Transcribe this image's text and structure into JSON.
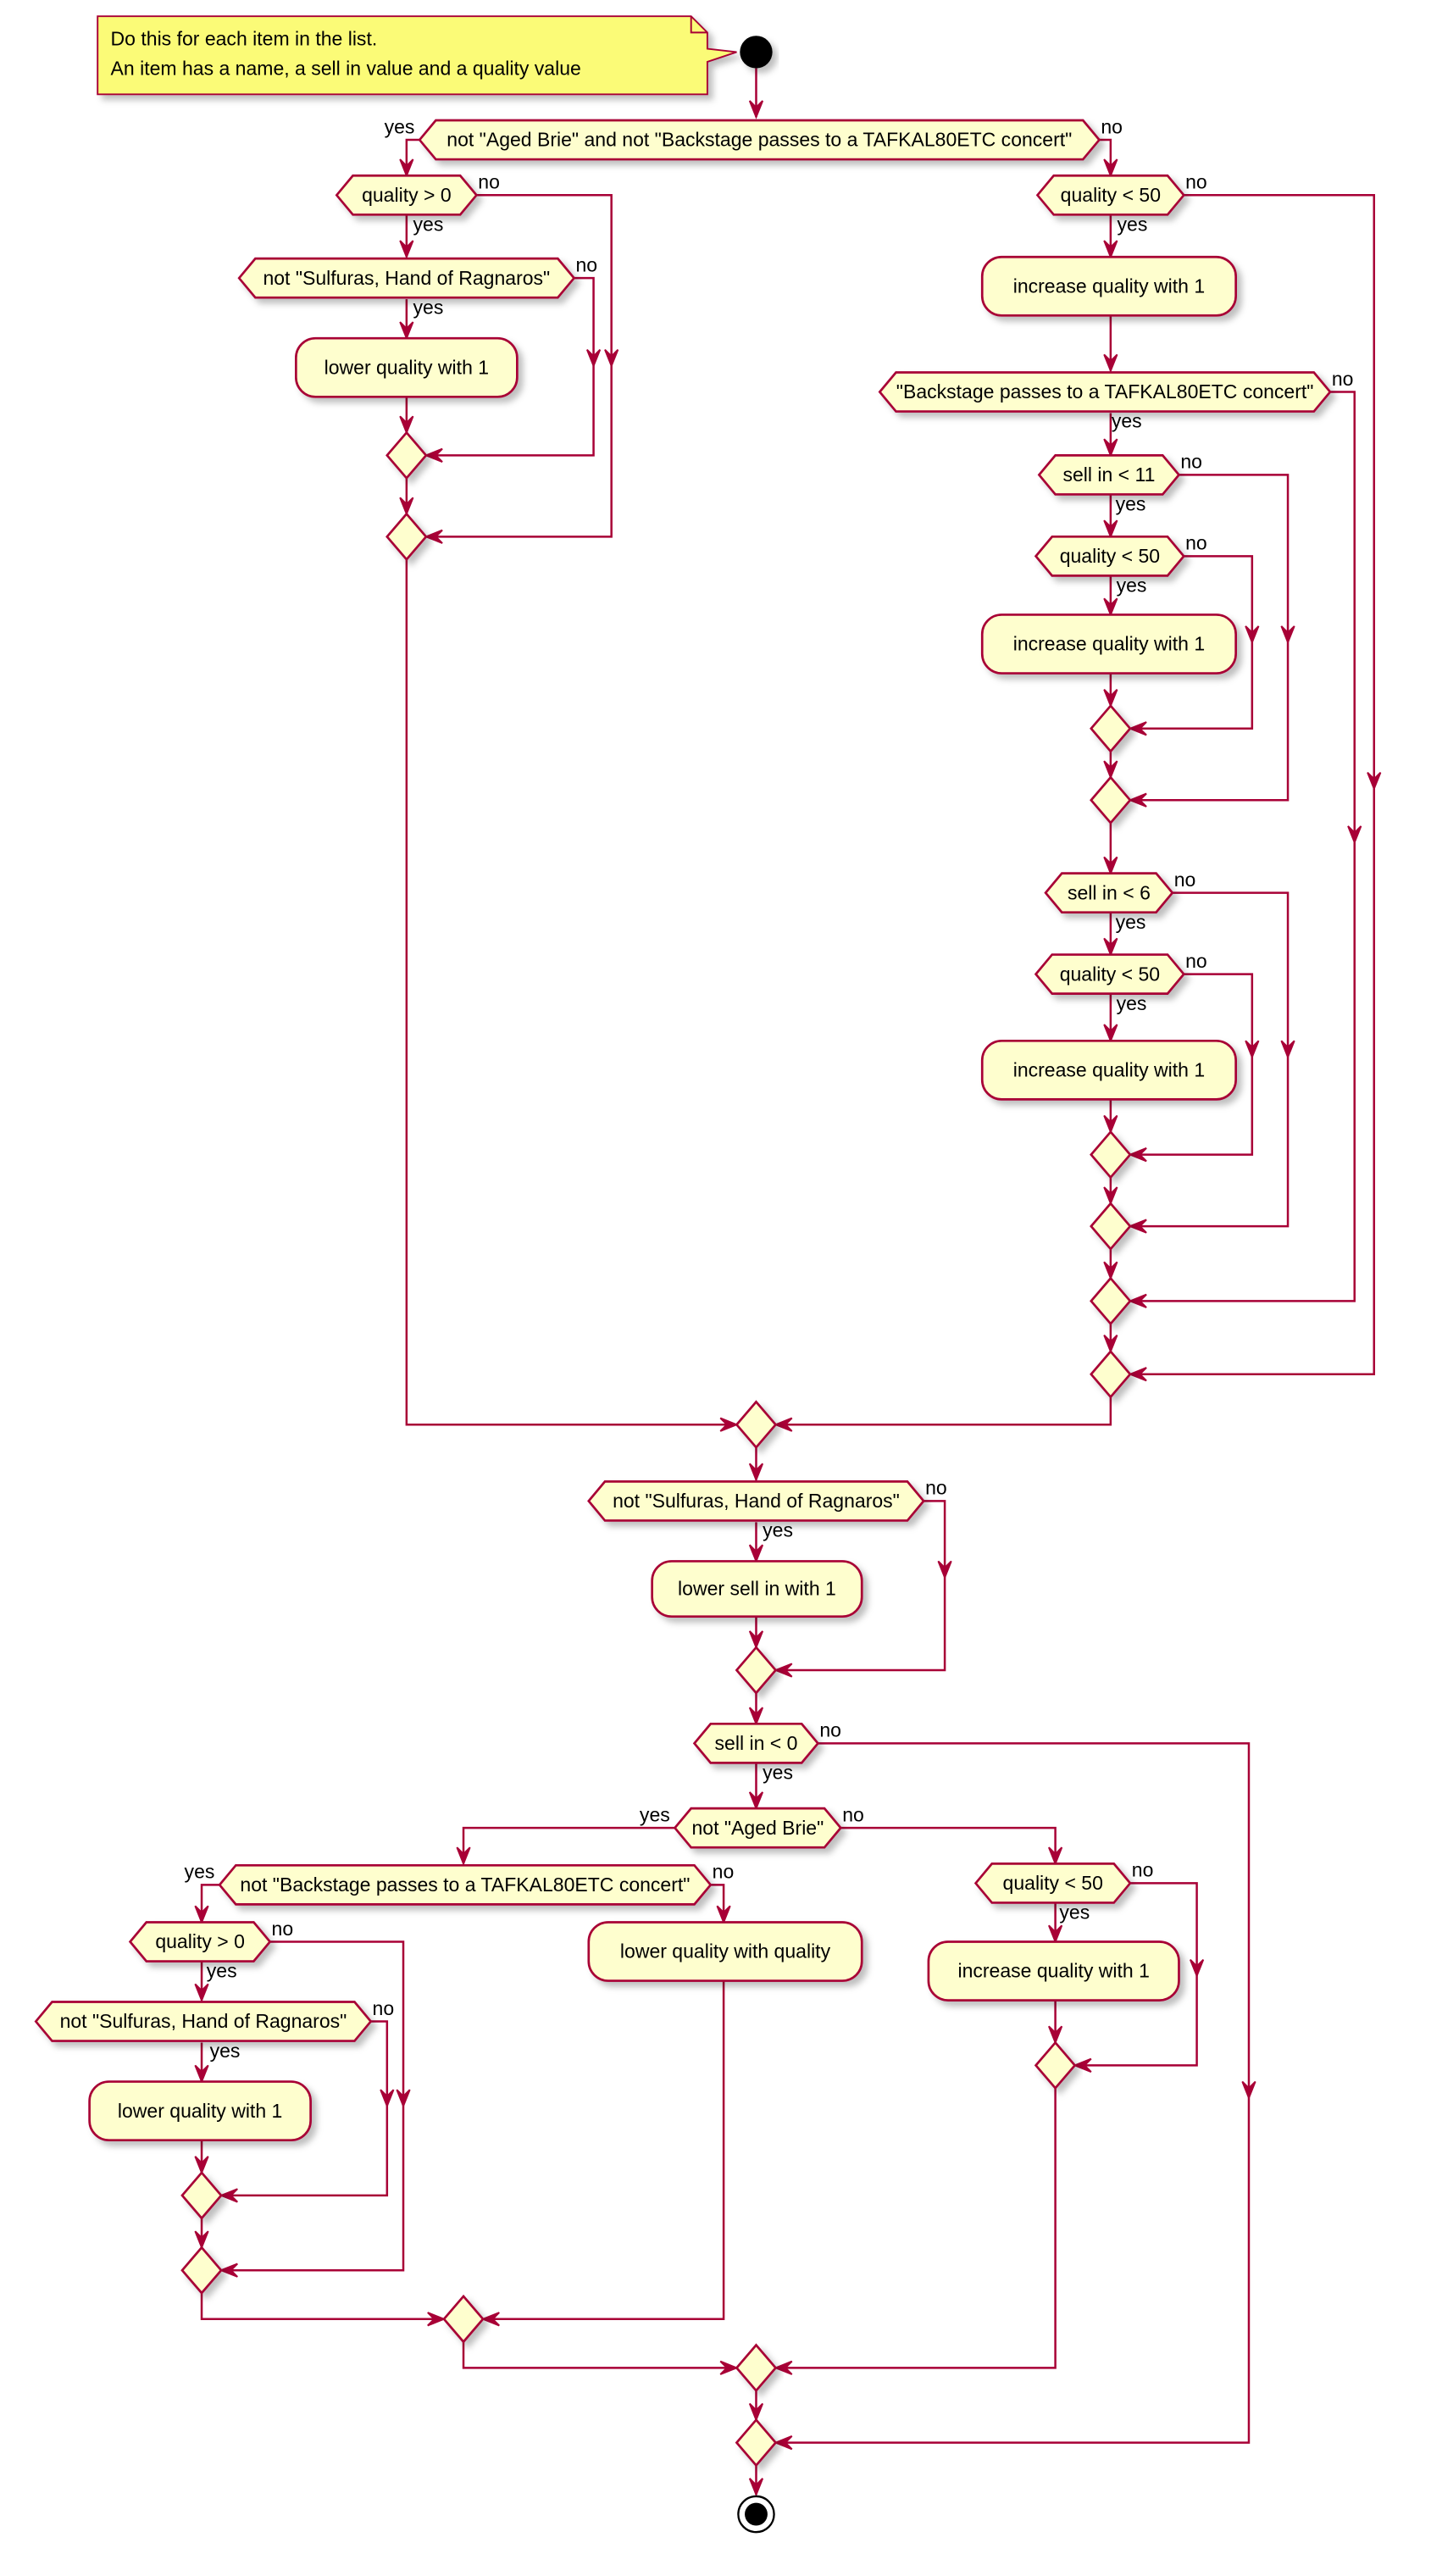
{
  "colors": {
    "fill": "#FEFECE",
    "stroke": "#A80036",
    "note_fill": "#FBFB77",
    "start": "#000000"
  },
  "branch": {
    "yes": "yes",
    "no": "no"
  },
  "note": {
    "lines": [
      "Do this for each item in the list.",
      "An item has a name, a sell in value and a quality value"
    ]
  },
  "decisions": {
    "d1": "not \"Aged Brie\" and not \"Backstage passes to a TAFKAL80ETC concert\"",
    "d2": "quality > 0",
    "d3": "not \"Sulfuras, Hand of Ragnaros\"",
    "d4": "quality < 50",
    "d5": "\"Backstage passes to a TAFKAL80ETC concert\"",
    "d6": "sell in < 11",
    "d7": "quality < 50",
    "d8": "sell in < 6",
    "d9": "quality < 50",
    "d10": "not \"Sulfuras, Hand of Ragnaros\"",
    "d11": "sell in < 0",
    "d12": "not \"Aged Brie\"",
    "d13": "not \"Backstage passes to a TAFKAL80ETC concert\"",
    "d14": "quality > 0",
    "d15": "not \"Sulfuras, Hand of Ragnaros\"",
    "d16": "quality < 50"
  },
  "actions": {
    "a1": "lower quality with 1",
    "a2": "increase quality with 1",
    "a3": "increase quality with 1",
    "a4": "increase quality with 1",
    "a5": "lower sell in with 1",
    "a6": "lower quality with quality",
    "a7": "lower quality with 1",
    "a8": "increase quality with 1"
  }
}
